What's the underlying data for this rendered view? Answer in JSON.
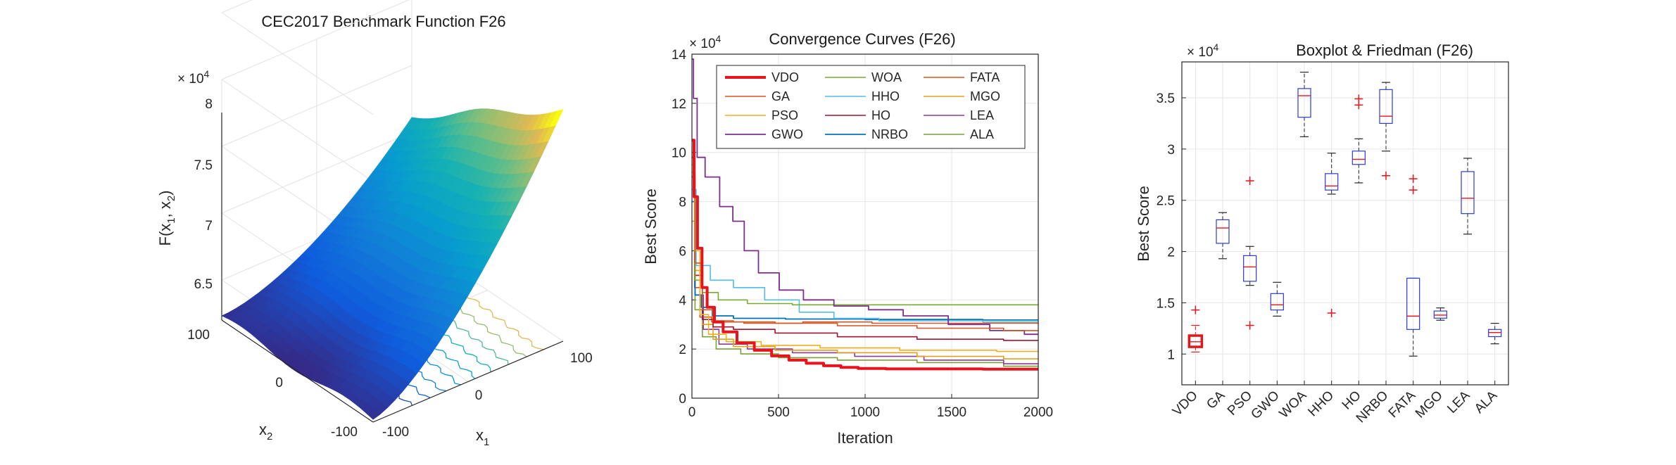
{
  "figure": {
    "background": "#ffffff"
  },
  "chart_data": [
    {
      "type": "surface3d",
      "title": "CEC2017 Benchmark Function F26",
      "zlabel": "F(x1, x2)",
      "zlabel_main": "F(x",
      "zlabel_sub1": "1",
      "zlabel_mid": ", x",
      "zlabel_sub2": "2",
      "zlabel_end": ")",
      "xlabel_main": "x",
      "xlabel_sub": "1",
      "ylabel_main": "x",
      "ylabel_sub": "2",
      "exponent_base": "× 10",
      "exponent_power": "4",
      "zticks": [
        "6.5",
        "7",
        "7.5",
        "8"
      ],
      "x1_ticks": [
        "-100",
        "0",
        "100"
      ],
      "x2_ticks": [
        "100",
        "0",
        "-100"
      ],
      "zlim": [
        6.2,
        8.0
      ],
      "x1_range": [
        -100,
        100
      ],
      "x2_range": [
        -100,
        100
      ],
      "colormap": "parula",
      "contour_levels": 9,
      "grid": true
    },
    {
      "type": "line",
      "title": "Convergence Curves (F26)",
      "xlabel": "Iteration",
      "ylabel": "Best Score",
      "exponent_base": "× 10",
      "exponent_power": "4",
      "xlim": [
        0,
        2000
      ],
      "ylim": [
        0,
        14
      ],
      "xticks": [
        "0",
        "500",
        "1000",
        "1500",
        "2000"
      ],
      "yticks": [
        "0",
        "2",
        "4",
        "6",
        "8",
        "10",
        "12",
        "14"
      ],
      "legend_position": "top",
      "grid": true,
      "series": [
        {
          "name": "VDO",
          "color": "#e8141b",
          "width": 4,
          "start": 10.5,
          "final": 1.18,
          "drop": [
            [
              0,
              10.5
            ],
            [
              20,
              8.2
            ],
            [
              40,
              6.1
            ],
            [
              70,
              4.5
            ],
            [
              100,
              3.7
            ],
            [
              150,
              3.1
            ],
            [
              200,
              2.7
            ],
            [
              300,
              2.25
            ],
            [
              400,
              1.95
            ],
            [
              500,
              1.72
            ],
            [
              600,
              1.55
            ],
            [
              700,
              1.42
            ],
            [
              800,
              1.32
            ],
            [
              900,
              1.25
            ],
            [
              1000,
              1.21
            ],
            [
              1200,
              1.19
            ],
            [
              2000,
              1.18
            ]
          ]
        },
        {
          "name": "GA",
          "color": "#d9531e",
          "width": 1.6,
          "drop": [
            [
              0,
              9.0
            ],
            [
              30,
              5.5
            ],
            [
              80,
              3.6
            ],
            [
              150,
              3.15
            ],
            [
              300,
              3.1
            ],
            [
              600,
              3.05
            ],
            [
              1000,
              2.95
            ],
            [
              1500,
              2.85
            ],
            [
              2000,
              2.75
            ]
          ]
        },
        {
          "name": "PSO",
          "color": "#edb120",
          "width": 1.6,
          "drop": [
            [
              0,
              9.5
            ],
            [
              25,
              6.0
            ],
            [
              60,
              3.4
            ],
            [
              120,
              2.6
            ],
            [
              250,
              2.3
            ],
            [
              500,
              2.15
            ],
            [
              900,
              2.05
            ],
            [
              1400,
              1.95
            ],
            [
              2000,
              1.9
            ]
          ]
        },
        {
          "name": "GWO",
          "color": "#7e2f8e",
          "width": 1.8,
          "drop": [
            [
              0,
              13.8
            ],
            [
              15,
              12.2
            ],
            [
              40,
              9.8
            ],
            [
              100,
              9.0
            ],
            [
              200,
              7.8
            ],
            [
              260,
              7.2
            ],
            [
              330,
              6.0
            ],
            [
              420,
              5.1
            ],
            [
              560,
              4.4
            ],
            [
              700,
              4.0
            ],
            [
              900,
              3.75
            ],
            [
              1100,
              3.6
            ],
            [
              1300,
              3.35
            ],
            [
              1600,
              3.0
            ],
            [
              1800,
              2.75
            ],
            [
              2000,
              2.6
            ]
          ]
        },
        {
          "name": "WOA",
          "color": "#77ac30",
          "width": 1.6,
          "drop": [
            [
              0,
              7.2
            ],
            [
              30,
              4.8
            ],
            [
              80,
              4.3
            ],
            [
              200,
              4.0
            ],
            [
              400,
              3.85
            ],
            [
              700,
              3.8
            ],
            [
              2000,
              3.8
            ]
          ]
        },
        {
          "name": "HHO",
          "color": "#4dbeee",
          "width": 1.6,
          "drop": [
            [
              0,
              8.5
            ],
            [
              40,
              5.4
            ],
            [
              150,
              4.8
            ],
            [
              300,
              4.5
            ],
            [
              500,
              4.0
            ],
            [
              700,
              3.5
            ],
            [
              900,
              3.25
            ],
            [
              1200,
              3.15
            ],
            [
              2000,
              3.1
            ]
          ]
        },
        {
          "name": "HO",
          "color": "#a2142f",
          "width": 1.6,
          "drop": [
            [
              0,
              9.8
            ],
            [
              30,
              5.0
            ],
            [
              80,
              3.2
            ],
            [
              150,
              2.9
            ],
            [
              300,
              2.8
            ],
            [
              600,
              2.65
            ],
            [
              1000,
              2.5
            ],
            [
              1500,
              2.4
            ],
            [
              2000,
              2.35
            ]
          ]
        },
        {
          "name": "NRBO",
          "color": "#0072bd",
          "width": 1.8,
          "drop": [
            [
              0,
              8.0
            ],
            [
              30,
              4.2
            ],
            [
              70,
              3.7
            ],
            [
              150,
              3.35
            ],
            [
              300,
              3.25
            ],
            [
              700,
              3.22
            ],
            [
              1200,
              3.2
            ],
            [
              2000,
              3.18
            ]
          ]
        },
        {
          "name": "FATA",
          "color": "#d95319",
          "width": 1.6,
          "drop": [
            [
              0,
              10.0
            ],
            [
              25,
              4.5
            ],
            [
              60,
              3.3
            ],
            [
              150,
              3.1
            ],
            [
              400,
              3.05
            ],
            [
              800,
              3.1
            ],
            [
              1200,
              3.05
            ],
            [
              2000,
              3.05
            ]
          ]
        },
        {
          "name": "MGO",
          "color": "#e3a11b",
          "width": 1.6,
          "drop": [
            [
              0,
              9.2
            ],
            [
              30,
              5.2
            ],
            [
              80,
              3.0
            ],
            [
              150,
              2.4
            ],
            [
              300,
              2.1
            ],
            [
              600,
              1.95
            ],
            [
              1000,
              1.85
            ],
            [
              1500,
              1.7
            ],
            [
              2000,
              1.6
            ]
          ]
        },
        {
          "name": "LEA",
          "color": "#8e3a98",
          "width": 1.6,
          "drop": [
            [
              0,
              9.0
            ],
            [
              30,
              4.2
            ],
            [
              90,
              2.8
            ],
            [
              200,
              2.2
            ],
            [
              400,
              2.0
            ],
            [
              700,
              1.85
            ],
            [
              1100,
              1.7
            ],
            [
              1500,
              1.55
            ],
            [
              2000,
              1.4
            ]
          ]
        },
        {
          "name": "ALA",
          "color": "#7aa03a",
          "width": 1.6,
          "drop": [
            [
              0,
              8.0
            ],
            [
              30,
              3.6
            ],
            [
              80,
              2.5
            ],
            [
              180,
              2.0
            ],
            [
              350,
              1.8
            ],
            [
              600,
              1.65
            ],
            [
              1000,
              1.55
            ],
            [
              1500,
              1.45
            ],
            [
              2000,
              1.3
            ]
          ]
        }
      ]
    },
    {
      "type": "boxplot",
      "title": "Boxplot & Friedman (F26)",
      "ylabel": "Best Score",
      "exponent_base": "× 10",
      "exponent_power": "4",
      "ylim": [
        0.7,
        3.85
      ],
      "yticks": [
        "1",
        "1.5",
        "2",
        "2.5",
        "3",
        "3.5"
      ],
      "grid": true,
      "categories": [
        "VDO",
        "GA",
        "PSO",
        "GWO",
        "WOA",
        "HHO",
        "HO",
        "NRBO",
        "FATA",
        "MGO",
        "LEA",
        "ALA"
      ],
      "boxes": [
        {
          "name": "VDO",
          "min": 1.02,
          "q1": 1.07,
          "median": 1.12,
          "q3": 1.18,
          "max": 1.28,
          "outliers": [
            1.43
          ],
          "highlight": true
        },
        {
          "name": "GA",
          "min": 1.93,
          "q1": 2.08,
          "median": 2.23,
          "q3": 2.31,
          "max": 2.38,
          "outliers": []
        },
        {
          "name": "PSO",
          "min": 1.67,
          "q1": 1.71,
          "median": 1.85,
          "q3": 1.96,
          "max": 2.05,
          "outliers": [
            2.69,
            1.28
          ]
        },
        {
          "name": "GWO",
          "min": 1.37,
          "q1": 1.43,
          "median": 1.48,
          "q3": 1.59,
          "max": 1.7,
          "outliers": []
        },
        {
          "name": "WOA",
          "min": 3.12,
          "q1": 3.31,
          "median": 3.52,
          "q3": 3.59,
          "max": 3.75,
          "outliers": []
        },
        {
          "name": "HHO",
          "min": 2.56,
          "q1": 2.6,
          "median": 2.64,
          "q3": 2.76,
          "max": 2.96,
          "outliers": [
            1.4
          ]
        },
        {
          "name": "HO",
          "min": 2.67,
          "q1": 2.85,
          "median": 2.9,
          "q3": 2.98,
          "max": 3.1,
          "outliers": [
            3.49,
            3.43
          ]
        },
        {
          "name": "NRBO",
          "min": 2.98,
          "q1": 3.25,
          "median": 3.32,
          "q3": 3.58,
          "max": 3.65,
          "outliers": [
            2.74
          ]
        },
        {
          "name": "FATA",
          "min": 0.98,
          "q1": 1.24,
          "median": 1.37,
          "q3": 1.74,
          "max": 1.74,
          "outliers": [
            2.71,
            2.6
          ]
        },
        {
          "name": "MGO",
          "min": 1.33,
          "q1": 1.35,
          "median": 1.38,
          "q3": 1.42,
          "max": 1.45,
          "outliers": []
        },
        {
          "name": "LEA",
          "min": 2.17,
          "q1": 2.37,
          "median": 2.52,
          "q3": 2.78,
          "max": 2.91,
          "outliers": []
        },
        {
          "name": "ALA",
          "min": 1.1,
          "q1": 1.17,
          "median": 1.21,
          "q3": 1.24,
          "max": 1.3,
          "outliers": []
        }
      ]
    }
  ]
}
